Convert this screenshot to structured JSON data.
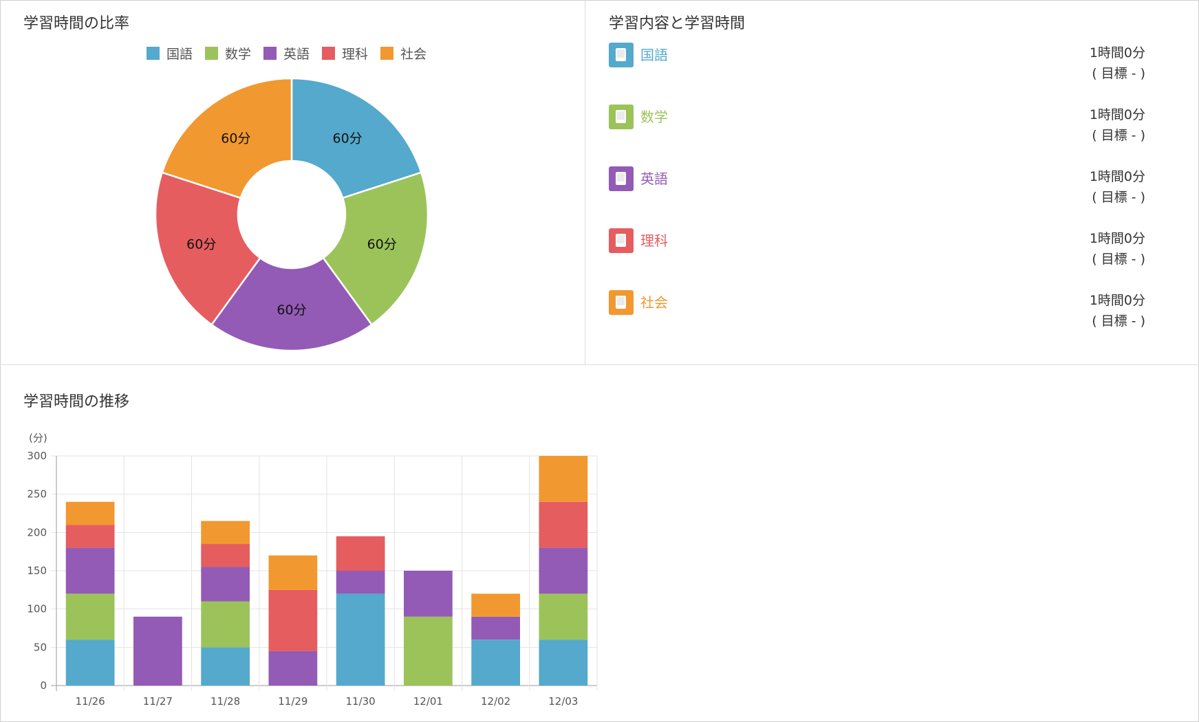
{
  "panels": {
    "ratio_title": "学習時間の比率",
    "content_title": "学習内容と学習時間",
    "trend_title": "学習時間の推移"
  },
  "subjects": [
    {
      "name": "国語",
      "color": "#54a9cc",
      "time": "1時間0分",
      "goal": "( 目標 - )"
    },
    {
      "name": "数学",
      "color": "#9bc35a",
      "time": "1時間0分",
      "goal": "( 目標 - )"
    },
    {
      "name": "英語",
      "color": "#935bb5",
      "time": "1時間0分",
      "goal": "( 目標 - )"
    },
    {
      "name": "理科",
      "color": "#e55d5f",
      "time": "1時間0分",
      "goal": "( 目標 - )"
    },
    {
      "name": "社会",
      "color": "#f29830",
      "time": "1時間0分",
      "goal": "( 目標 - )"
    }
  ],
  "icons": {
    "subject_icon": "book-icon"
  },
  "chart_data": [
    {
      "type": "pie",
      "donut": true,
      "labels": [
        "国語",
        "数学",
        "英語",
        "理科",
        "社会"
      ],
      "values": [
        60,
        60,
        60,
        60,
        60
      ],
      "data_labels": [
        "60分",
        "60分",
        "60分",
        "60分",
        "60分"
      ],
      "colors": [
        "#54a9cc",
        "#9bc35a",
        "#935bb5",
        "#e55d5f",
        "#f29830"
      ],
      "legend": "top"
    },
    {
      "type": "bar",
      "stacked": true,
      "categories": [
        "11/26",
        "11/27",
        "11/28",
        "11/29",
        "11/30",
        "12/01",
        "12/02",
        "12/03"
      ],
      "series": [
        {
          "name": "国語",
          "color": "#54a9cc",
          "values": [
            60,
            0,
            50,
            0,
            120,
            0,
            60,
            60
          ]
        },
        {
          "name": "数学",
          "color": "#9bc35a",
          "values": [
            60,
            0,
            60,
            0,
            0,
            90,
            0,
            60
          ]
        },
        {
          "name": "英語",
          "color": "#935bb5",
          "values": [
            60,
            90,
            45,
            45,
            30,
            60,
            30,
            60
          ]
        },
        {
          "name": "理科",
          "color": "#e55d5f",
          "values": [
            30,
            0,
            30,
            80,
            45,
            0,
            0,
            60
          ]
        },
        {
          "name": "社会",
          "color": "#f29830",
          "values": [
            30,
            0,
            30,
            45,
            0,
            0,
            30,
            60
          ]
        }
      ],
      "ylabel": "(分)",
      "ylim": [
        0,
        300
      ],
      "yticks": [
        0,
        50,
        100,
        150,
        200,
        250,
        300
      ],
      "grid": true
    }
  ]
}
